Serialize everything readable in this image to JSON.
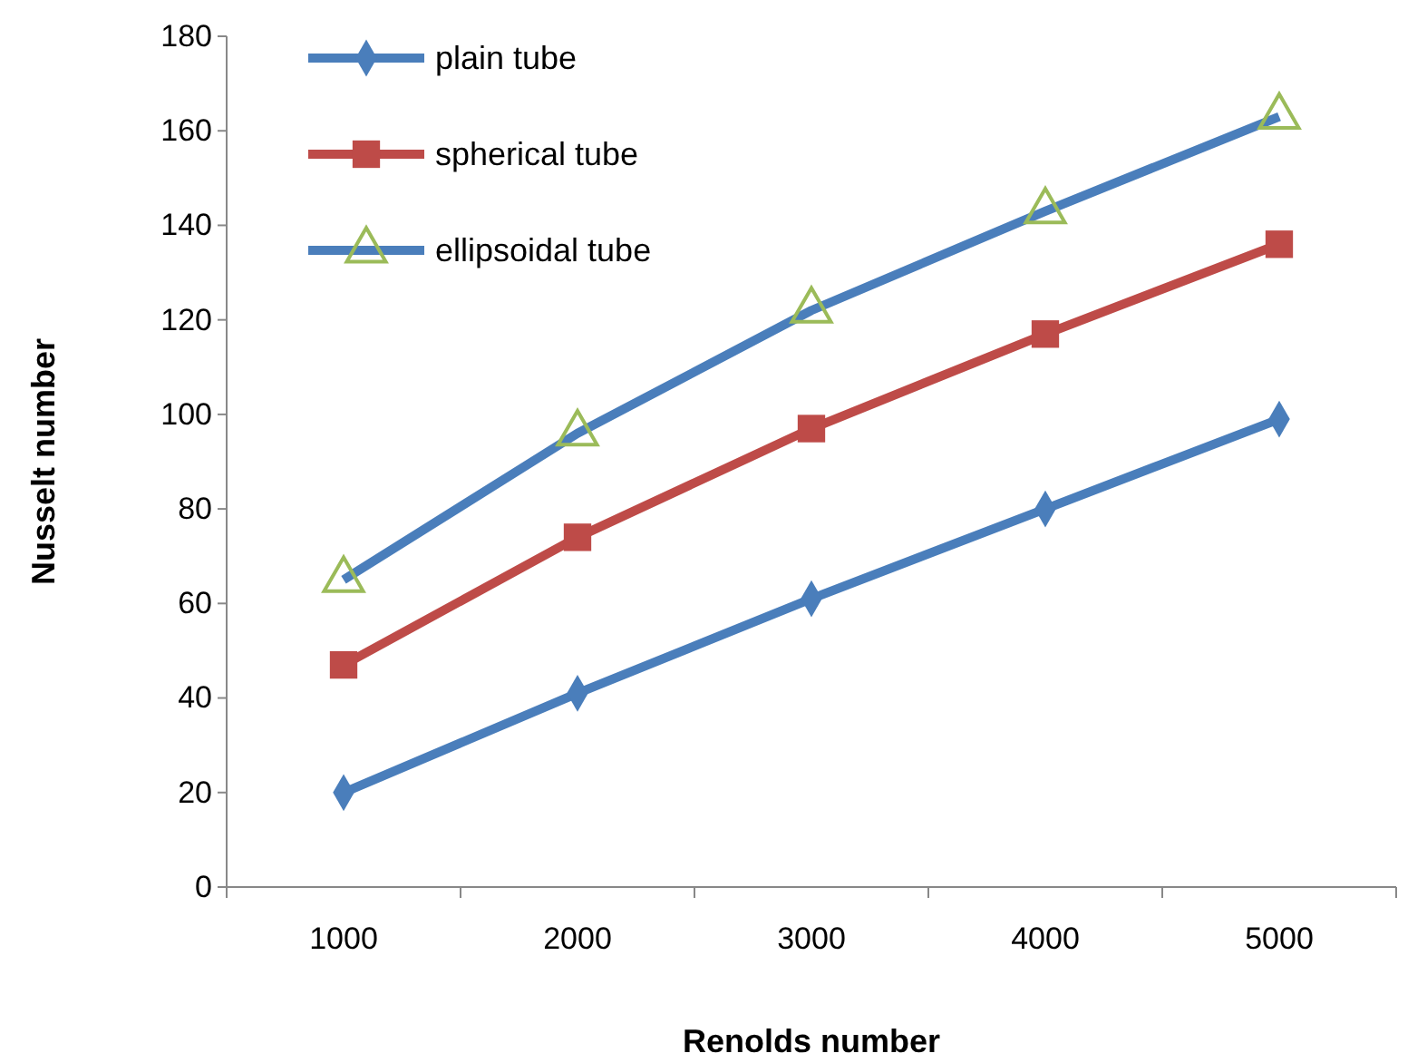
{
  "chart_data": {
    "type": "line",
    "xlabel": "Renolds number",
    "ylabel": "Nusselt number",
    "categories": [
      "1000",
      "2000",
      "3000",
      "4000",
      "5000"
    ],
    "ylim": [
      0,
      180
    ],
    "yticks": [
      0,
      20,
      40,
      60,
      80,
      100,
      120,
      140,
      160,
      180
    ],
    "grid": false,
    "legend": "top left",
    "series": [
      {
        "name": "plain tube",
        "color": "#4a7ebb",
        "marker": "diamond",
        "values": [
          20,
          41,
          61,
          80,
          99
        ]
      },
      {
        "name": "spherical tube",
        "color": "#be4b48",
        "marker": "square",
        "values": [
          47,
          74,
          97,
          117,
          136
        ]
      },
      {
        "name": "ellipsoidal tube",
        "color": "#4a7ebb",
        "marker": "triangle",
        "colors": [
          "#9bbb59",
          "#9bbb59",
          "#9bbb59",
          "#9bbb59",
          "#9bbb59"
        ],
        "values": [
          65,
          96,
          122,
          143,
          163
        ]
      }
    ]
  }
}
